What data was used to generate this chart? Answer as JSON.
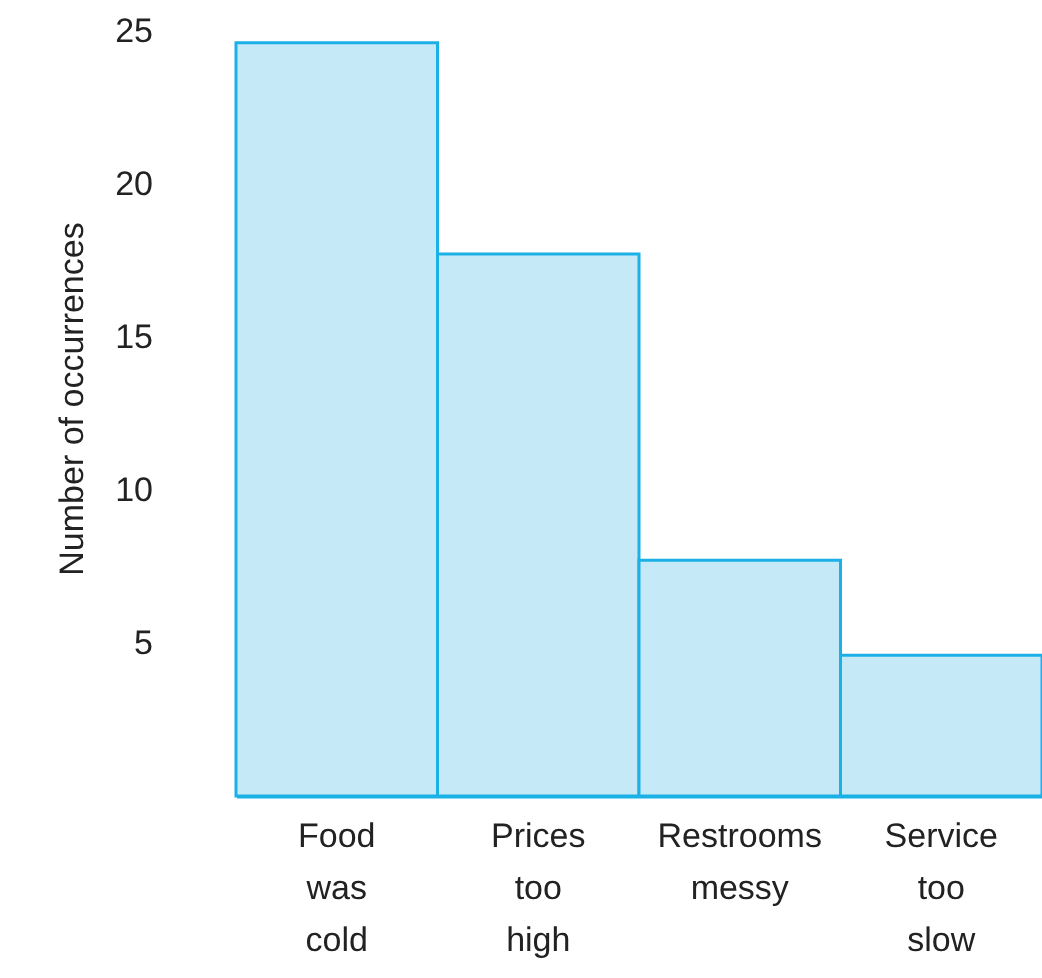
{
  "chart_data": {
    "type": "bar",
    "ylabel": "Number of occurrences",
    "categories": [
      "Food was cold",
      "Prices too high",
      "Restrooms messy",
      "Service too slow"
    ],
    "values": [
      24.6,
      17.7,
      7.7,
      4.6
    ],
    "color": "#c6e9f8",
    "ylim": [
      0,
      26
    ],
    "yticks": [
      5,
      10,
      15,
      20,
      25
    ],
    "grid": false
  }
}
